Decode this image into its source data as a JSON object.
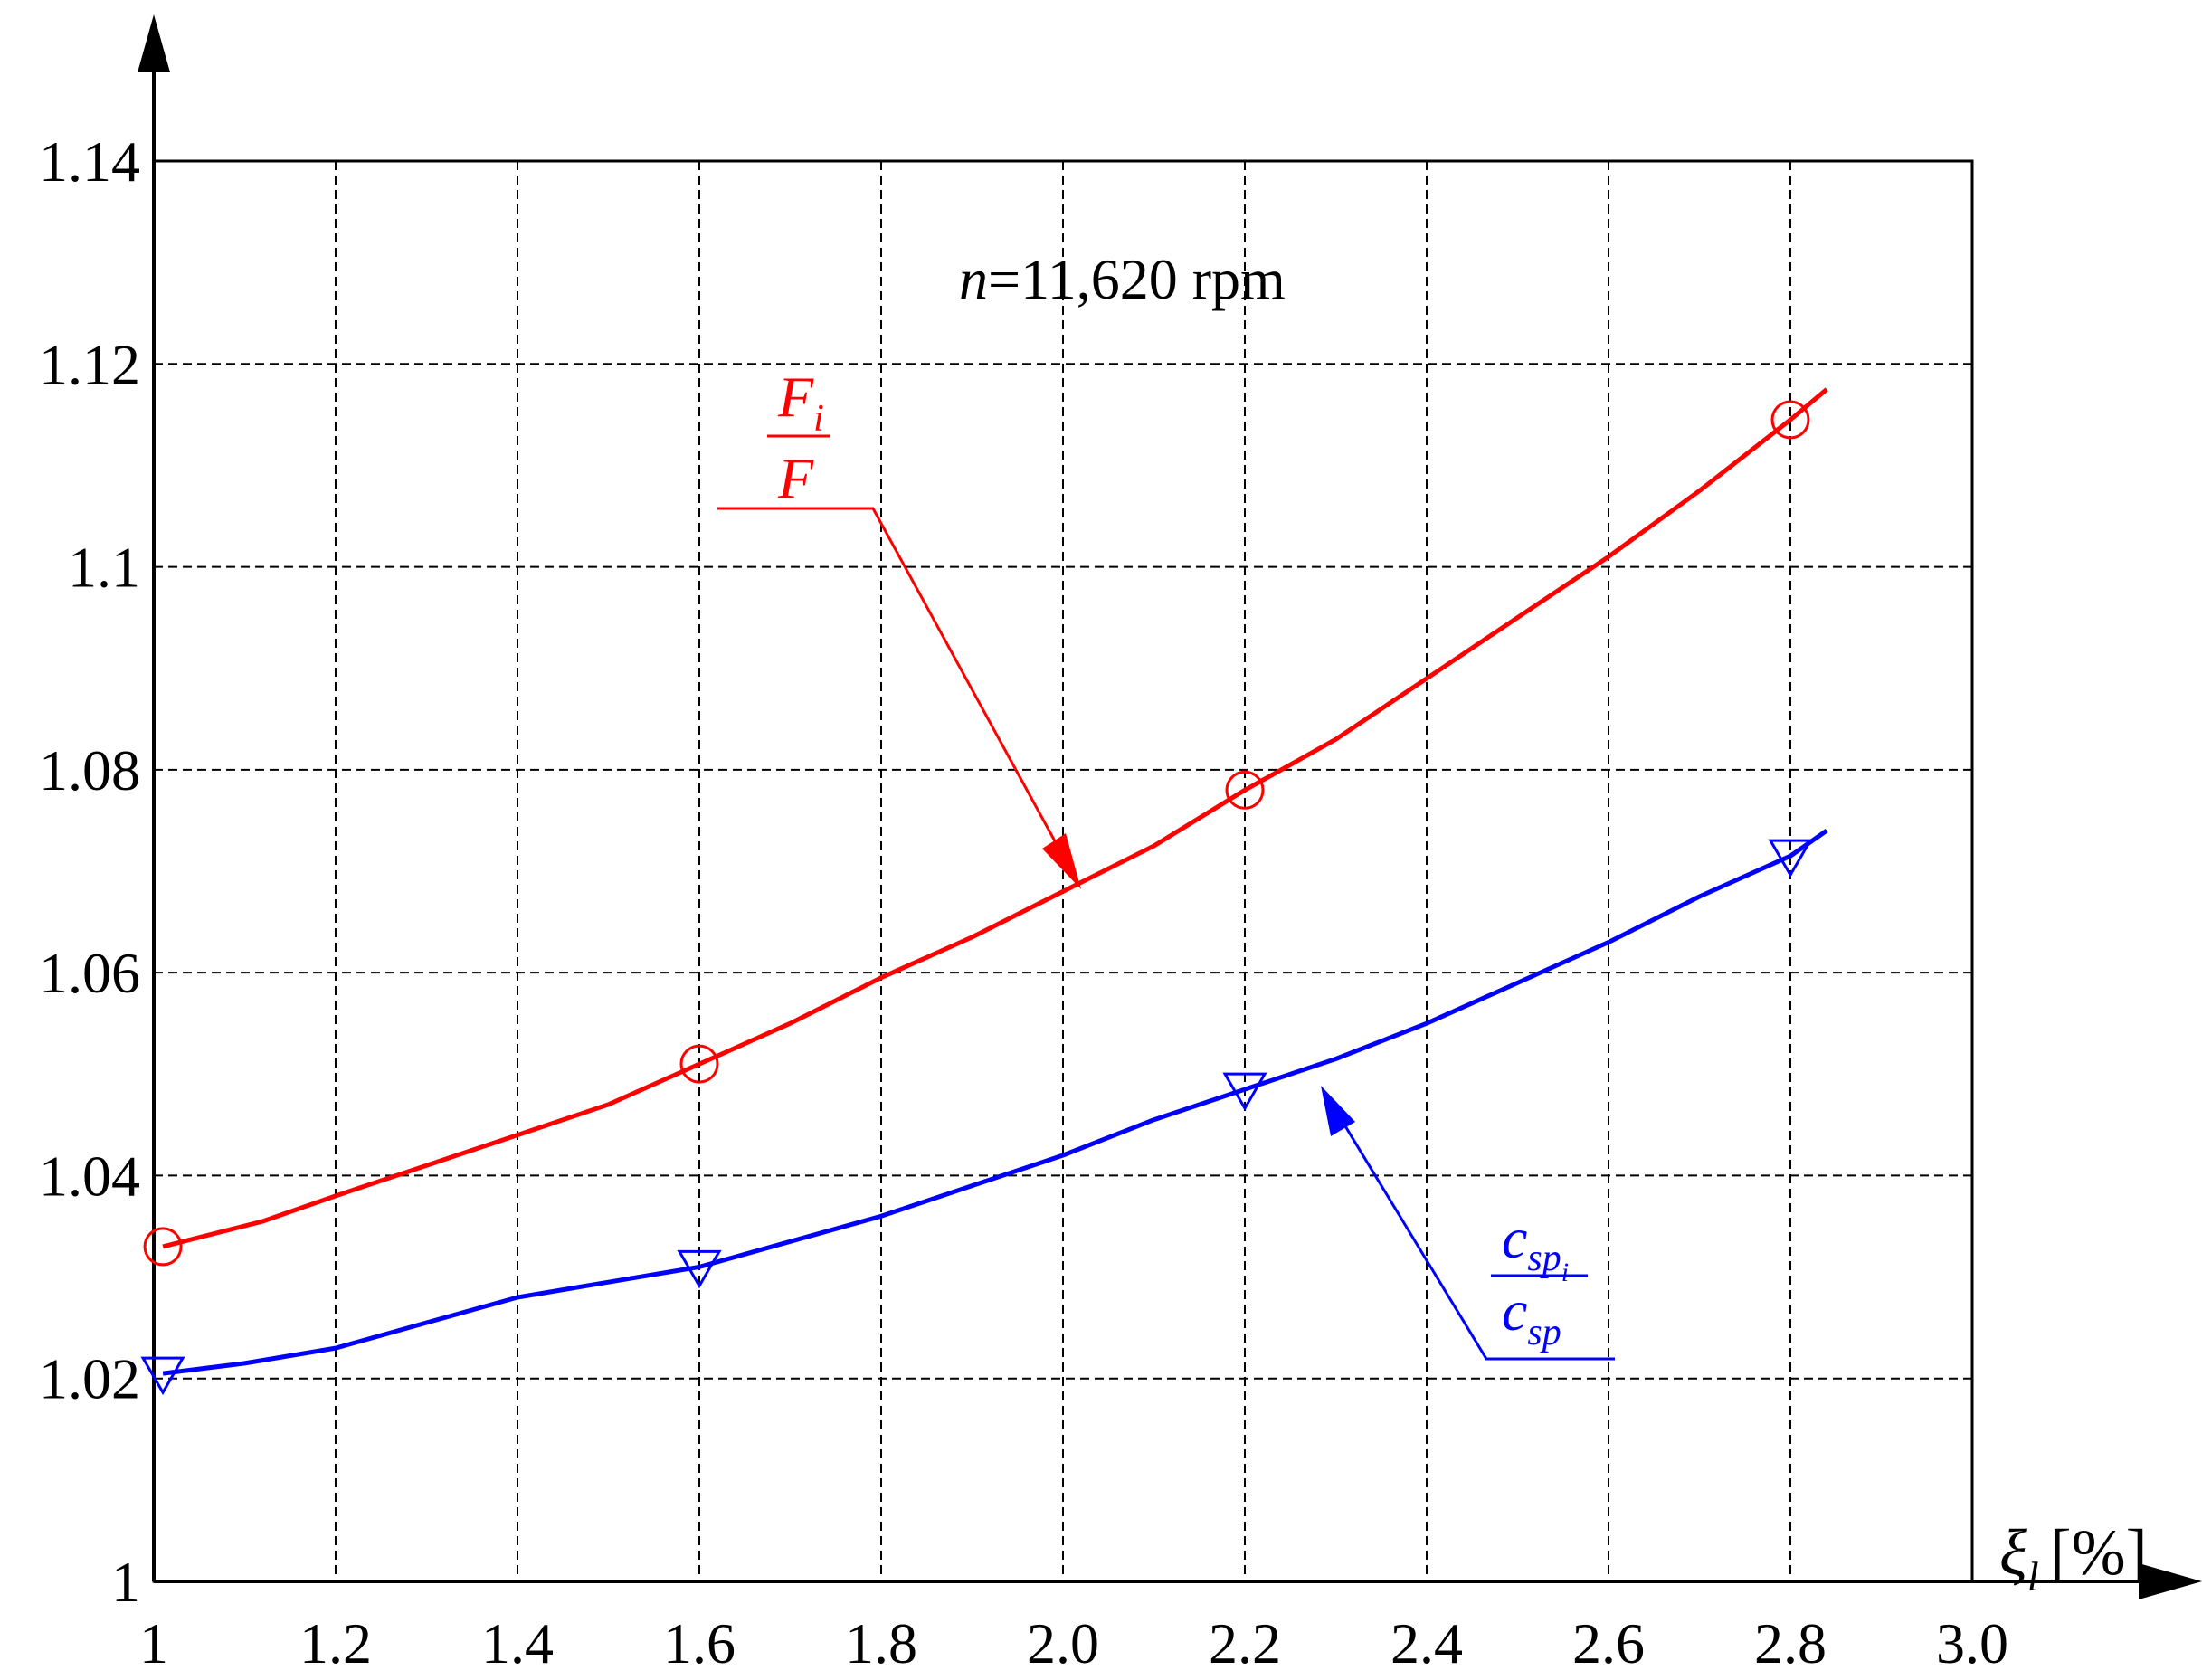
{
  "chart_data": {
    "type": "line",
    "title": "",
    "xlabel_symbol": "ξ",
    "xlabel_subscript": "l",
    "xlabel_unit": "[%]",
    "ylabel": "",
    "xlim": [
      1.0,
      3.0
    ],
    "ylim": [
      1.0,
      1.14
    ],
    "x_ticks": [
      1.0,
      1.2,
      1.4,
      1.6,
      1.8,
      2.0,
      2.2,
      2.4,
      2.6,
      2.8,
      3.0
    ],
    "x_tick_labels": [
      "1",
      "1.2",
      "1.4",
      "1.6",
      "1.8",
      "2.0",
      "2.2",
      "2.4",
      "2.6",
      "2.8",
      "3.0"
    ],
    "y_ticks": [
      1.0,
      1.02,
      1.04,
      1.06,
      1.08,
      1.1,
      1.12,
      1.14
    ],
    "y_tick_labels": [
      "1",
      "1.02",
      "1.04",
      "1.06",
      "1.08",
      "1.1",
      "1.12",
      "1.14"
    ],
    "grid": true,
    "annotation": {
      "italic": "n",
      "text": "=11,620 rpm"
    },
    "series": [
      {
        "id": "force-ratio",
        "color": "#ff0000",
        "marker": "circle",
        "label_num": "F",
        "label_num_sub": "i",
        "label_den": "F",
        "x": [
          1.01,
          1.12,
          1.2,
          1.3,
          1.4,
          1.5,
          1.6,
          1.7,
          1.8,
          1.9,
          2.0,
          2.1,
          2.2,
          2.3,
          2.4,
          2.5,
          2.6,
          2.7,
          2.8,
          2.84
        ],
        "y": [
          1.033,
          1.0355,
          1.038,
          1.041,
          1.044,
          1.047,
          1.051,
          1.055,
          1.0595,
          1.0635,
          1.068,
          1.0725,
          1.078,
          1.083,
          1.089,
          1.095,
          1.101,
          1.1075,
          1.1145,
          1.1175
        ],
        "marker_x": [
          1.01,
          1.6,
          2.2,
          2.8
        ],
        "marker_y": [
          1.033,
          1.051,
          1.078,
          1.1145
        ]
      },
      {
        "id": "stiffness-ratio",
        "color": "#0000ff",
        "marker": "triangle-down",
        "label_num": "c",
        "label_num_sub": "sp",
        "label_num_subsub": "i",
        "label_den": "c",
        "label_den_sub": "sp",
        "x": [
          1.01,
          1.1,
          1.2,
          1.3,
          1.4,
          1.5,
          1.6,
          1.7,
          1.8,
          1.9,
          2.0,
          2.1,
          2.2,
          2.3,
          2.4,
          2.5,
          2.6,
          2.7,
          2.8,
          2.84
        ],
        "y": [
          1.0205,
          1.0215,
          1.023,
          1.0255,
          1.028,
          1.0295,
          1.031,
          1.0335,
          1.036,
          1.039,
          1.042,
          1.0455,
          1.0485,
          1.0515,
          1.055,
          1.059,
          1.063,
          1.0675,
          1.0715,
          1.074
        ],
        "marker_x": [
          1.01,
          1.6,
          2.2,
          2.8
        ],
        "marker_y": [
          1.0205,
          1.031,
          1.0485,
          1.0715
        ]
      }
    ]
  }
}
